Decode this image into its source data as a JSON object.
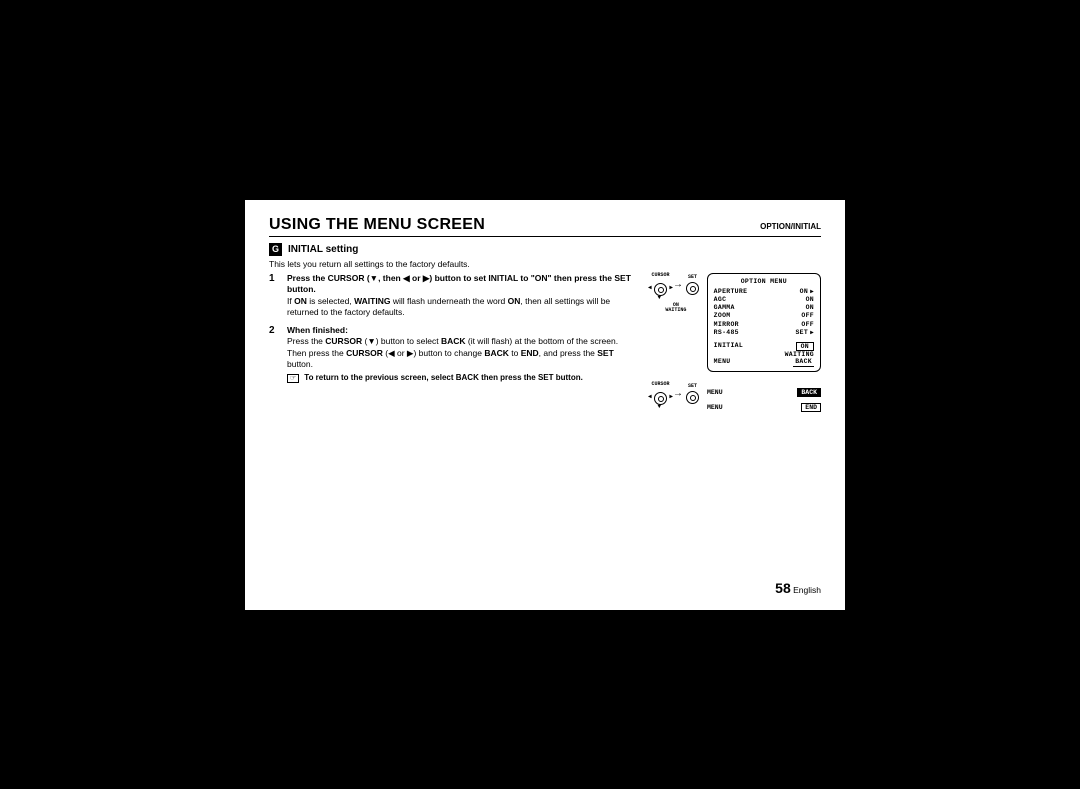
{
  "header": {
    "title": "USING THE MENU SCREEN",
    "breadcrumb": "OPTION/INITIAL"
  },
  "section": {
    "letter": "G",
    "title": "INITIAL setting",
    "intro": "This lets you return all settings to the factory defaults."
  },
  "steps": [
    {
      "num": "1",
      "head": "Press the CURSOR (▼, then ◀ or ▶) button to set INITIAL to \"ON\" then press the SET button.",
      "body_pre": "If ",
      "body_b1": "ON",
      "body_mid1": " is selected, ",
      "body_b2": "WAITING",
      "body_mid2": " will flash underneath the word ",
      "body_b3": "ON",
      "body_post": ", then all settings will be returned to the factory defaults."
    },
    {
      "num": "2",
      "head": "When finished:",
      "body_pre": "Press the ",
      "body_b1": "CURSOR",
      "body_mid1": " (▼) button to select ",
      "body_b2": "BACK",
      "body_mid2": " (it will flash) at the bottom of the screen. Then press the ",
      "body_b3": "CURSOR",
      "body_mid3": " (◀ or ▶) button to change ",
      "body_b4": "BACK",
      "body_mid4": " to ",
      "body_b5": "END",
      "body_post": ", and press the ",
      "body_b6": "SET",
      "body_end": " button."
    }
  ],
  "note": "To return to the previous screen, select BACK then press the SET button.",
  "osd": {
    "title": "OPTION MENU",
    "rows": [
      {
        "label": "APERTURE",
        "value": "ON",
        "arrow": true
      },
      {
        "label": "AGC",
        "value": "ON"
      },
      {
        "label": "GAMMA",
        "value": "ON"
      },
      {
        "label": "ZOOM",
        "value": "OFF"
      },
      {
        "label": "MIRROR",
        "value": "OFF"
      },
      {
        "label": "RS-485",
        "value": "SET",
        "arrow": true
      }
    ],
    "initial_label": "INITIAL",
    "initial_value": "ON",
    "initial_wait": "WAITING",
    "menu_label": "MENU",
    "back_label": "BACK"
  },
  "diagram": {
    "cursor_label": "CURSOR",
    "set_label": "SET",
    "under1_a": "ON",
    "under1_b": "WAITING",
    "row2_label": "MENU",
    "row2_val": "BACK",
    "row3_label": "MENU",
    "row3_val": "END"
  },
  "footer": {
    "page": "58",
    "lang": "English"
  },
  "colors": {
    "bg": "#000000",
    "page": "#ffffff",
    "text": "#000000"
  }
}
